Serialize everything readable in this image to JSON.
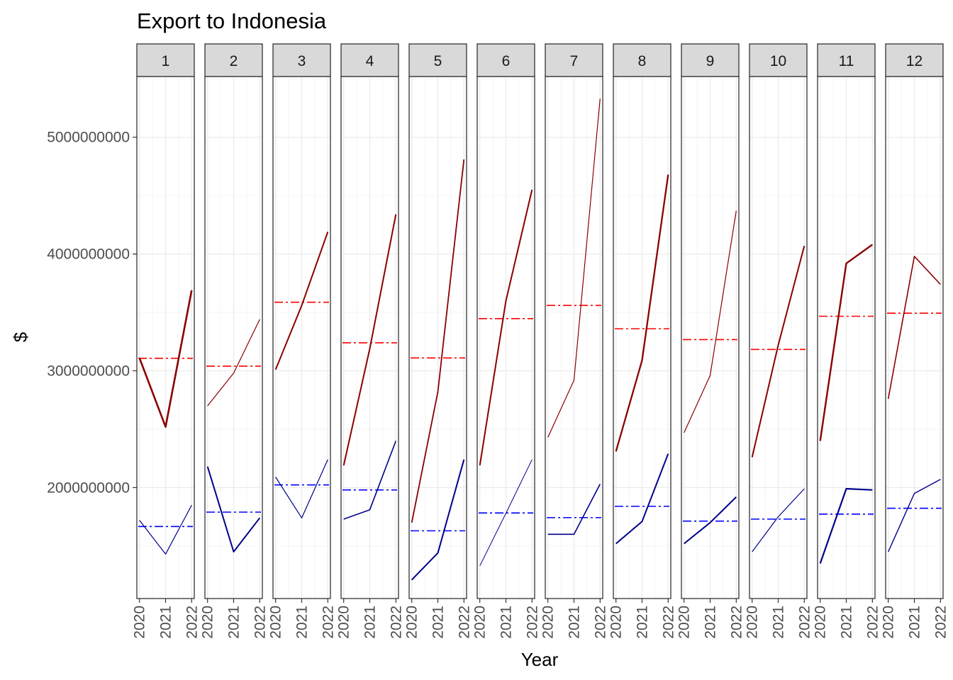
{
  "chart_data": {
    "type": "line",
    "title": "Export to Indonesia",
    "xlabel": "Year",
    "ylabel": "$",
    "x_ticks": [
      2020,
      2021,
      2022
    ],
    "y_ticks": [
      2000000000,
      3000000000,
      4000000000,
      5000000000
    ],
    "ylim": [
      1050000000,
      5520000000
    ],
    "xlim": [
      2019.9,
      2022.1
    ],
    "grid": true,
    "facets": [
      "1",
      "2",
      "3",
      "4",
      "5",
      "6",
      "7",
      "8",
      "9",
      "10",
      "11",
      "12"
    ],
    "colors": {
      "series_upper": "#8b0000",
      "series_upper_mean": "#ff0000",
      "series_lower": "#00008b",
      "series_lower_mean": "#0000ff",
      "strip_fill": "#d9d9d9",
      "grid_major": "#ebebeb",
      "grid_minor": "#f5f5f5",
      "panel_border": "#333333"
    },
    "series": [
      {
        "values": [
          [
            3110000000,
            2520000000,
            3690000000
          ],
          [
            2700000000,
            2980000000,
            3440000000
          ],
          [
            3010000000,
            3560000000,
            4190000000
          ],
          [
            2190000000,
            3190000000,
            4340000000
          ],
          [
            1700000000,
            2820000000,
            4810000000
          ],
          [
            2190000000,
            3600000000,
            4550000000
          ],
          [
            2430000000,
            2920000000,
            5330000000
          ],
          [
            2310000000,
            3090000000,
            4680000000
          ],
          [
            2470000000,
            2960000000,
            4370000000
          ],
          [
            2260000000,
            3220000000,
            4070000000
          ],
          [
            2400000000,
            3920000000,
            4080000000
          ],
          [
            2760000000,
            3980000000,
            3740000000
          ]
        ],
        "means": [
          3107000000,
          3040000000,
          3587000000,
          3240000000,
          3110000000,
          3447000000,
          3560000000,
          3360000000,
          3267000000,
          3183000000,
          3467000000,
          3493000000
        ],
        "line_widths": [
          2.6,
          1.2,
          2.0,
          2.0,
          1.8,
          2.0,
          1.2,
          2.3,
          1.2,
          2.0,
          2.4,
          1.6
        ]
      },
      {
        "values": [
          [
            1720000000,
            1430000000,
            1850000000
          ],
          [
            2180000000,
            1450000000,
            1740000000
          ],
          [
            2090000000,
            1740000000,
            2240000000
          ],
          [
            1730000000,
            1810000000,
            2400000000
          ],
          [
            1210000000,
            1440000000,
            2240000000
          ],
          [
            1330000000,
            1780000000,
            2240000000
          ],
          [
            1600000000,
            1600000000,
            2030000000
          ],
          [
            1520000000,
            1710000000,
            2290000000
          ],
          [
            1520000000,
            1700000000,
            1920000000
          ],
          [
            1450000000,
            1750000000,
            1990000000
          ],
          [
            1350000000,
            1990000000,
            1980000000
          ],
          [
            1450000000,
            1950000000,
            2070000000
          ]
        ],
        "means": [
          1667000000,
          1790000000,
          2023000000,
          1980000000,
          1630000000,
          1783000000,
          1743000000,
          1840000000,
          1713000000,
          1730000000,
          1773000000,
          1823000000
        ],
        "line_widths": [
          1.2,
          2.0,
          1.2,
          1.6,
          2.0,
          1.0,
          1.6,
          2.0,
          2.0,
          1.2,
          2.2,
          1.4
        ]
      }
    ]
  }
}
